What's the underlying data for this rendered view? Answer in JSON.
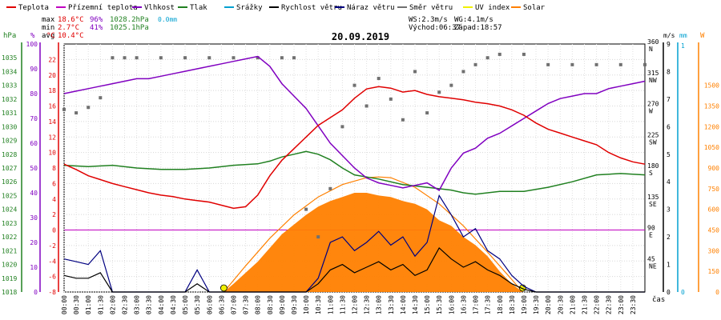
{
  "chart_data": {
    "type": "line",
    "title": "20.09.2019",
    "legend": [
      {
        "label": "Teplota",
        "color": "#e00000"
      },
      {
        "label": "Přízemní teplota",
        "color": "#c000c0"
      },
      {
        "label": "Vlhkost",
        "color": "#8000c0"
      },
      {
        "label": "Tlak",
        "color": "#208020"
      },
      {
        "label": "Srážky",
        "color": "#00a0d0"
      },
      {
        "label": "Rychlost větru",
        "color": "#000000"
      },
      {
        "label": "Náraz větru",
        "color": "#000080"
      },
      {
        "label": "Směr větru",
        "color": "#707070"
      },
      {
        "label": "UV index",
        "color": "#f0f000"
      },
      {
        "label": "Solar",
        "color": "#ff8000"
      }
    ],
    "stats": {
      "max": {
        "label": "max",
        "temp": "18.6°C",
        "hum": "96%",
        "press": "1028.2hPa",
        "rain": "0.0mm"
      },
      "min": {
        "label": "min",
        "temp": "2.7°C",
        "hum": "41%",
        "press": "1025.1hPa"
      },
      "avg": {
        "label": "avg",
        "temp": "10.4°C"
      }
    },
    "info": {
      "ws": "WS:2.3m/s",
      "wg": "WG:4.1m/s",
      "sunrise": "Východ:06:37",
      "sunset": "Západ:18:57"
    },
    "axes": {
      "hpa_title": "hPa",
      "hpa_ticks": [
        "1035",
        "1034",
        "1033",
        "1032",
        "1031",
        "1030",
        "1029",
        "1028",
        "1027",
        "1026",
        "1025",
        "1024",
        "1023",
        "1022",
        "1021",
        "1020",
        "1019",
        "1018"
      ],
      "pct_title": "%",
      "pct_ticks": [
        "100",
        "90",
        "80",
        "70",
        "60",
        "50",
        "40",
        "30",
        "20",
        "10",
        "0"
      ],
      "temp_title": "°C",
      "temp_ticks": [
        "22",
        "20",
        "18",
        "16",
        "14",
        "12",
        "10",
        "8",
        "6",
        "4",
        "2",
        "0",
        "-2",
        "-4",
        "-6",
        "-8"
      ],
      "dir_ticks": [
        {
          "deg": 360,
          "name": "N"
        },
        {
          "deg": 315,
          "name": "NW"
        },
        {
          "deg": 270,
          "name": "W"
        },
        {
          "deg": 225,
          "name": "SW"
        },
        {
          "deg": 180,
          "name": "S"
        },
        {
          "deg": 135,
          "name": "SE"
        },
        {
          "deg": 90,
          "name": "E"
        },
        {
          "deg": 45,
          "name": "NE"
        }
      ],
      "ms_title": "m/s",
      "ms_ticks": [
        "9",
        "8",
        "7",
        "6",
        "5",
        "4",
        "3",
        "2",
        "1",
        "0"
      ],
      "mm_title": "mm",
      "mm_ticks": [
        "1",
        "0"
      ],
      "w_title": "W",
      "w_ticks": [
        "1500",
        "1350",
        "1200",
        "1050",
        "900",
        "750",
        "600",
        "450",
        "300",
        "150",
        "0"
      ],
      "x_unit": "čas",
      "x_ticks": [
        "00:00",
        "00:30",
        "01:00",
        "01:30",
        "02:00",
        "02:30",
        "03:00",
        "03:30",
        "04:00",
        "04:30",
        "05:00",
        "05:30",
        "06:00",
        "06:30",
        "07:00",
        "07:30",
        "08:00",
        "08:30",
        "09:00",
        "09:30",
        "10:00",
        "10:30",
        "11:00",
        "11:30",
        "12:00",
        "12:30",
        "13:00",
        "13:30",
        "14:00",
        "14:30",
        "15:00",
        "15:30",
        "16:00",
        "16:30",
        "17:00",
        "17:30",
        "18:00",
        "18:30",
        "19:00",
        "19:30",
        "20:00",
        "20:30",
        "21:00",
        "21:30",
        "22:00",
        "22:30",
        "23:00",
        "23:30"
      ]
    },
    "ranges": {
      "temp": [
        -8,
        24
      ],
      "pressure": [
        1018,
        1036
      ],
      "humidity": [
        0,
        100
      ],
      "wind": [
        0,
        9
      ],
      "direction": [
        0,
        360
      ],
      "solar": [
        0,
        1500
      ]
    },
    "series": [
      {
        "name": "Teplota",
        "unit": "°C",
        "x": [
          0,
          0.5,
          1,
          1.5,
          2,
          2.5,
          3,
          3.5,
          4,
          4.5,
          5,
          5.5,
          6,
          6.5,
          7,
          7.5,
          8,
          8.5,
          9,
          9.5,
          10,
          10.5,
          11,
          11.5,
          12,
          12.5,
          13,
          13.5,
          14,
          14.5,
          15,
          15.5,
          16,
          16.5,
          17,
          17.5,
          18,
          18.5,
          19,
          19.5,
          20,
          20.5,
          21,
          21.5,
          22,
          22.5,
          23,
          23.5,
          24
        ],
        "y": [
          8.5,
          7.8,
          7.0,
          6.5,
          6.0,
          5.6,
          5.2,
          4.8,
          4.5,
          4.3,
          4.0,
          3.8,
          3.6,
          3.2,
          2.8,
          3.0,
          4.5,
          7.0,
          9.0,
          10.5,
          12.0,
          13.5,
          14.5,
          15.5,
          17.0,
          18.2,
          18.5,
          18.3,
          17.8,
          18.0,
          17.5,
          17.2,
          17.0,
          16.8,
          16.5,
          16.3,
          16.0,
          15.5,
          14.8,
          13.8,
          13.0,
          12.5,
          12.0,
          11.5,
          11.0,
          10.0,
          9.3,
          8.8,
          8.5
        ]
      },
      {
        "name": "Tlak",
        "unit": "hPa",
        "x": [
          0,
          1,
          2,
          3,
          4,
          5,
          6,
          7,
          8,
          8.5,
          9,
          9.5,
          10,
          10.5,
          11,
          11.5,
          12,
          13,
          14,
          15,
          16,
          16.5,
          17,
          18,
          19,
          20,
          21,
          22,
          23,
          24
        ],
        "y": [
          1027.2,
          1027.1,
          1027.2,
          1027.0,
          1026.9,
          1026.9,
          1027.0,
          1027.2,
          1027.3,
          1027.5,
          1027.8,
          1028.0,
          1028.2,
          1028.0,
          1027.6,
          1027.0,
          1026.5,
          1026.2,
          1025.8,
          1025.6,
          1025.4,
          1025.2,
          1025.1,
          1025.3,
          1025.3,
          1025.6,
          1026.0,
          1026.5,
          1026.6,
          1026.5
        ]
      },
      {
        "name": "Vlhkost",
        "unit": "%",
        "x": [
          0,
          0.5,
          1,
          1.5,
          2,
          2.5,
          3,
          3.5,
          4,
          4.5,
          5,
          5.5,
          6,
          6.5,
          7,
          7.5,
          8,
          8.5,
          9,
          9.5,
          10,
          10.5,
          11,
          11.5,
          12,
          12.5,
          13,
          13.5,
          14,
          14.5,
          15,
          15.5,
          16,
          16.5,
          17,
          17.5,
          18,
          18.5,
          19,
          19.5,
          20,
          20.5,
          21,
          21.5,
          22,
          22.5,
          23,
          23.5,
          24
        ],
        "y": [
          80,
          81,
          82,
          83,
          84,
          85,
          86,
          86,
          87,
          88,
          89,
          90,
          91,
          92,
          93,
          94,
          95,
          91,
          84,
          79,
          74,
          67,
          60,
          55,
          50,
          46,
          44,
          43,
          42,
          43,
          44,
          41,
          50,
          56,
          58,
          62,
          64,
          67,
          70,
          73,
          76,
          78,
          79,
          80,
          80,
          82,
          83,
          84,
          85
        ]
      },
      {
        "name": "Rychlost větru",
        "unit": "m/s",
        "x": [
          0,
          0.5,
          1,
          1.5,
          2,
          2.5,
          3,
          3.5,
          4,
          4.5,
          5,
          5.5,
          6,
          6.5,
          7,
          7.5,
          8,
          8.5,
          9,
          9.5,
          10,
          10.5,
          11,
          11.5,
          12,
          12.5,
          13,
          13.5,
          14,
          14.5,
          15,
          15.5,
          16,
          16.5,
          17,
          17.5,
          18,
          18.5,
          19,
          19.5,
          20,
          20.5,
          21,
          21.5,
          22,
          22.5,
          23,
          23.5,
          24
        ],
        "y": [
          0.6,
          0.5,
          0.5,
          0.7,
          0,
          0,
          0,
          0,
          0,
          0,
          0,
          0.3,
          0,
          0,
          0,
          0,
          0,
          0,
          0,
          0,
          0,
          0.3,
          0.8,
          1.0,
          0.7,
          0.9,
          1.1,
          0.8,
          1.0,
          0.6,
          0.8,
          1.6,
          1.2,
          0.9,
          1.1,
          0.8,
          0.6,
          0.3,
          0.1,
          0,
          0,
          0,
          0,
          0,
          0,
          0,
          0,
          0,
          0
        ]
      },
      {
        "name": "Náraz větru",
        "unit": "m/s",
        "x": [
          0,
          0.5,
          1,
          1.5,
          2,
          2.5,
          3,
          3.5,
          4,
          4.5,
          5,
          5.5,
          6,
          6.5,
          7,
          7.5,
          8,
          8.5,
          9,
          9.5,
          10,
          10.5,
          11,
          11.5,
          12,
          12.5,
          13,
          13.5,
          14,
          14.5,
          15,
          15.5,
          16,
          16.5,
          17,
          17.5,
          18,
          18.5,
          19,
          19.5,
          20,
          20.5,
          21,
          21.5,
          22,
          22.5,
          23,
          23.5,
          24
        ],
        "y": [
          1.2,
          1.1,
          1.0,
          1.5,
          0,
          0,
          0,
          0,
          0,
          0,
          0,
          0.8,
          0,
          0,
          0,
          0,
          0,
          0,
          0,
          0,
          0,
          0.5,
          1.8,
          2.0,
          1.5,
          1.8,
          2.2,
          1.7,
          2.0,
          1.3,
          1.8,
          3.5,
          2.8,
          2.0,
          2.3,
          1.5,
          1.2,
          0.6,
          0.2,
          0,
          0,
          0,
          0,
          0,
          0,
          0,
          0,
          0,
          0
        ]
      },
      {
        "name": "Směr větru",
        "unit": "°",
        "x": [
          0,
          0.5,
          1,
          1.5,
          2,
          2.5,
          3,
          4,
          5,
          6,
          7,
          8,
          9,
          9.5,
          10,
          10.5,
          11,
          11.5,
          12,
          12.5,
          13,
          13.5,
          14,
          14.5,
          15,
          15.5,
          16,
          16.5,
          17,
          17.5,
          18,
          19,
          20,
          21,
          22,
          23,
          24
        ],
        "y": [
          265,
          260,
          268,
          282,
          340,
          340,
          340,
          340,
          340,
          340,
          340,
          340,
          340,
          340,
          120,
          80,
          150,
          240,
          300,
          270,
          310,
          280,
          250,
          320,
          260,
          290,
          300,
          320,
          330,
          340,
          345,
          345,
          330,
          330,
          330,
          330,
          330
        ],
        "style": "dots"
      },
      {
        "name": "Solar",
        "unit": "W",
        "x": [
          6.6,
          7,
          8,
          9,
          10,
          10.5,
          11,
          11.5,
          12,
          12.5,
          13,
          13.5,
          14,
          14.5,
          15,
          15.5,
          16,
          16.5,
          17,
          17.5,
          18,
          18.5,
          18.95
        ],
        "y": [
          0,
          60,
          220,
          420,
          560,
          620,
          660,
          690,
          720,
          720,
          700,
          690,
          660,
          640,
          600,
          520,
          480,
          400,
          340,
          260,
          150,
          60,
          0
        ],
        "style": "area"
      },
      {
        "name": "Solar clear-sky",
        "unit": "W",
        "x": [
          6.6,
          7.5,
          8.5,
          9.5,
          10.5,
          11.5,
          12.5,
          13.0,
          13.5,
          14.5,
          15.5,
          16.5,
          17.5,
          18.5,
          18.95
        ],
        "y": [
          0,
          190,
          390,
          560,
          690,
          780,
          830,
          835,
          830,
          760,
          640,
          480,
          290,
          90,
          0
        ],
        "style": "curve"
      }
    ]
  }
}
